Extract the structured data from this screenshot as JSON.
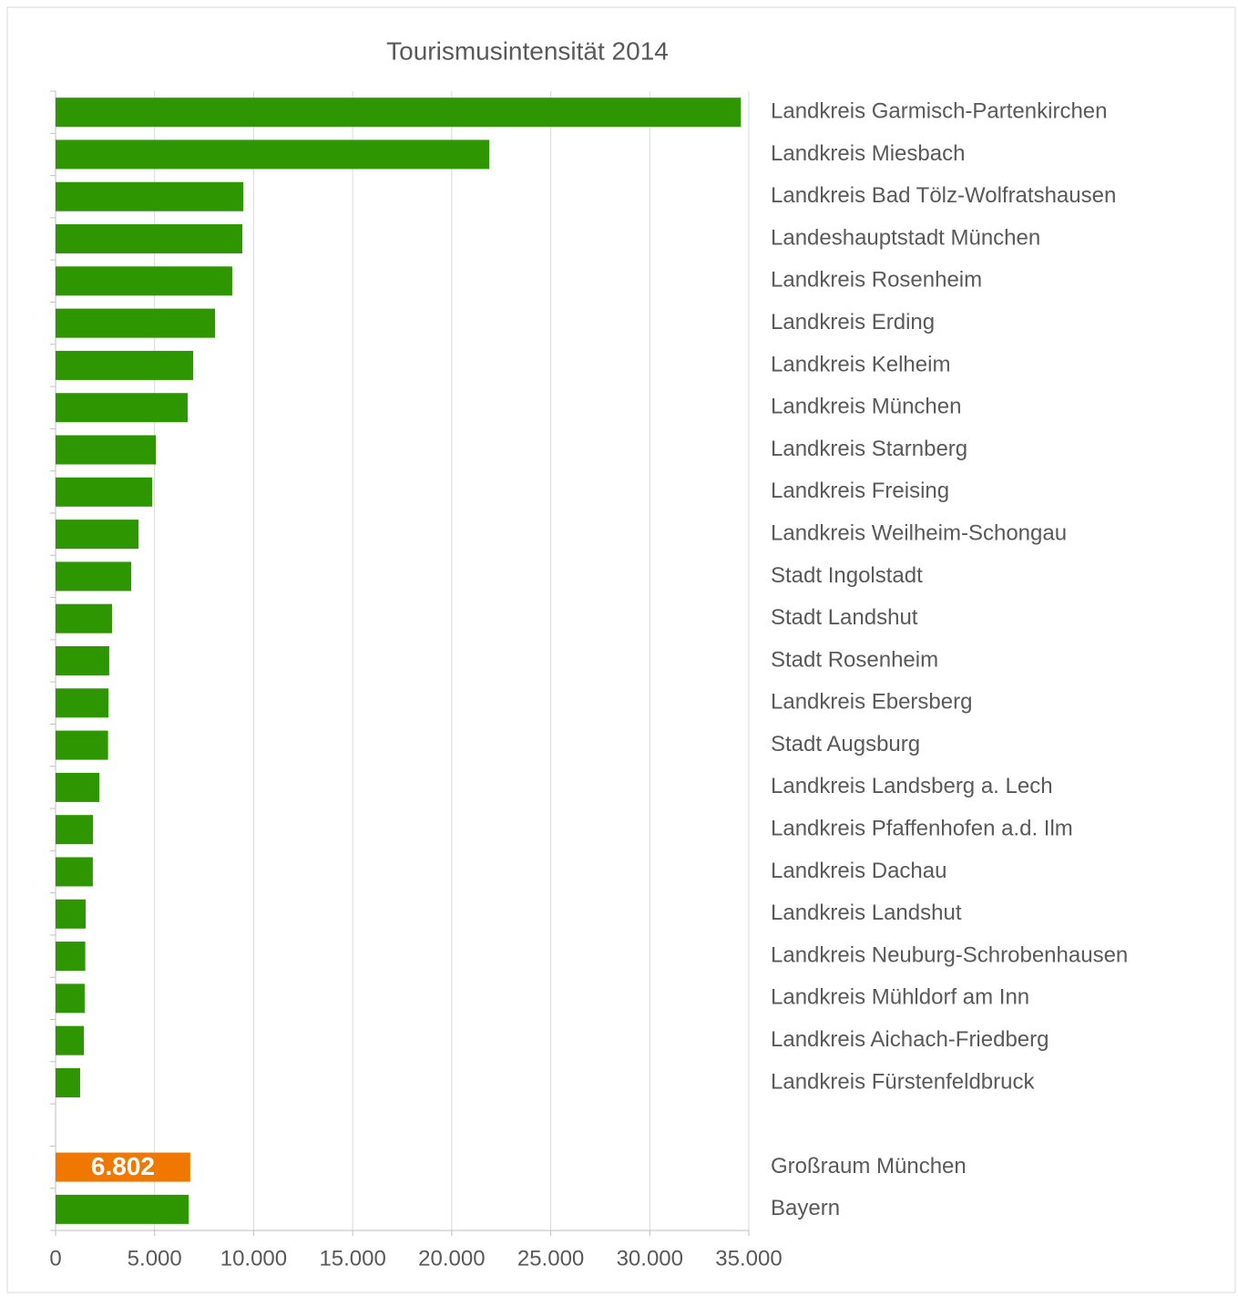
{
  "chart_data": {
    "type": "barh",
    "title": "Tourismusintensität 2014",
    "categories": [
      "Landkreis Garmisch-Partenkirchen",
      "Landkreis Miesbach",
      "Landkreis Bad Tölz-Wolfratshausen",
      "Landeshauptstadt München",
      "Landkreis Rosenheim",
      "Landkreis Erding",
      "Landkreis Kelheim",
      "Landkreis München",
      "Landkreis Starnberg",
      "Landkreis Freising",
      "Landkreis Weilheim-Schongau",
      "Stadt Ingolstadt",
      "Stadt Landshut",
      "Stadt Rosenheim",
      "Landkreis Ebersberg",
      "Stadt Augsburg",
      "Landkreis Landsberg a. Lech",
      "Landkreis Pfaffenhofen a.d. Ilm",
      "Landkreis Dachau",
      "Landkreis Landshut",
      "Landkreis Neuburg-Schrobenhausen",
      "Landkreis Mühldorf am Inn",
      "Landkreis Aichach-Friedberg",
      "Landkreis Fürstenfeldbruck",
      null,
      "Großraum München",
      "Bayern"
    ],
    "values": [
      34600,
      21900,
      9480,
      9430,
      8920,
      8050,
      6950,
      6670,
      5060,
      4880,
      4190,
      3820,
      2850,
      2710,
      2670,
      2650,
      2210,
      1890,
      1880,
      1520,
      1500,
      1470,
      1430,
      1240,
      null,
      6802,
      6720
    ],
    "value_labels": [
      null,
      null,
      null,
      null,
      null,
      null,
      null,
      null,
      null,
      null,
      null,
      null,
      null,
      null,
      null,
      null,
      null,
      null,
      null,
      null,
      null,
      null,
      null,
      null,
      null,
      "6.802",
      null
    ],
    "colors": [
      "#2e9600",
      "#2e9600",
      "#2e9600",
      "#2e9600",
      "#2e9600",
      "#2e9600",
      "#2e9600",
      "#2e9600",
      "#2e9600",
      "#2e9600",
      "#2e9600",
      "#2e9600",
      "#2e9600",
      "#2e9600",
      "#2e9600",
      "#2e9600",
      "#2e9600",
      "#2e9600",
      "#2e9600",
      "#2e9600",
      "#2e9600",
      "#2e9600",
      "#2e9600",
      "#2e9600",
      null,
      "#f07800",
      "#2e9600"
    ],
    "xlim": [
      0,
      35000
    ],
    "xticks": [
      0,
      {
        "value": 5000,
        "label": "5.000"
      },
      {
        "value": 10000,
        "label": "10.000"
      },
      {
        "value": 15000,
        "label": "15.000"
      },
      {
        "value": 20000,
        "label": "20.000"
      },
      {
        "value": 25000,
        "label": "25.000"
      },
      {
        "value": 30000,
        "label": "30.000"
      },
      {
        "value": 35000,
        "label": "35.000"
      }
    ],
    "grid": true
  }
}
